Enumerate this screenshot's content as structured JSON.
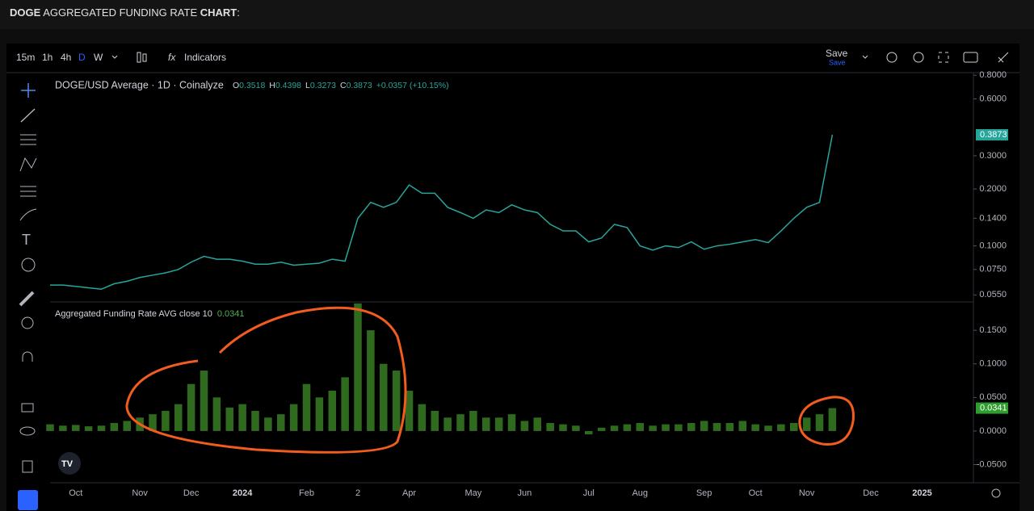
{
  "header": {
    "title": [
      "DOGE",
      " AGGREGATED FUNDING RATE ",
      "CHART",
      ":"
    ]
  },
  "toolbar": {
    "intervals": [
      "15m",
      "1h",
      "4h",
      "D",
      "W"
    ],
    "indicators": "Indicators",
    "save": "Save",
    "save_sub": "Save"
  },
  "chart_data": [
    {
      "type": "line",
      "title": "DOGE/USD Average · 1D · Coinalyze",
      "ohlc": [
        "O",
        "0.3518",
        "H",
        "0.4398",
        "L",
        "0.3273",
        "C",
        "0.3873",
        "+0.0357 (+10.15%)"
      ],
      "log_scale": true,
      "color": "#26a69a",
      "categories": [
        null,
        null,
        "Oct",
        null,
        null,
        null,
        null,
        "Nov",
        null,
        null,
        null,
        "Dec",
        null,
        null,
        null,
        "2024",
        null,
        null,
        null,
        null,
        "Feb",
        null,
        null,
        null,
        "2",
        null,
        null,
        null,
        "Apr",
        null,
        null,
        null,
        null,
        "May",
        null,
        null,
        null,
        "Jun",
        null,
        null,
        null,
        null,
        "Jul",
        null,
        null,
        null,
        "Aug",
        null,
        null,
        null,
        null,
        "Sep",
        null,
        null,
        null,
        "Oct",
        null,
        null,
        null,
        "Nov",
        null,
        null,
        null,
        null,
        "Dec",
        null,
        null,
        null,
        "2025",
        null,
        null,
        null
      ],
      "values": [
        0.062,
        0.062,
        0.061,
        0.06,
        0.059,
        0.063,
        0.065,
        0.068,
        0.07,
        0.072,
        0.075,
        0.082,
        0.088,
        0.085,
        0.085,
        0.083,
        0.08,
        0.08,
        0.082,
        0.079,
        0.08,
        0.081,
        0.085,
        0.083,
        0.14,
        0.17,
        0.16,
        0.17,
        0.21,
        0.19,
        0.19,
        0.16,
        0.15,
        0.14,
        0.155,
        0.15,
        0.165,
        0.155,
        0.15,
        0.13,
        0.12,
        0.12,
        0.105,
        0.11,
        0.13,
        0.125,
        0.1,
        0.095,
        0.1,
        0.098,
        0.105,
        0.096,
        0.1,
        0.102,
        0.105,
        0.108,
        0.104,
        0.12,
        0.14,
        0.16,
        0.17,
        0.3873,
        null,
        null,
        null,
        null,
        null,
        null,
        null,
        null,
        null,
        null
      ],
      "ylim": [
        0.051,
        0.81
      ],
      "yticks": [
        {
          "value": 0.8,
          "label": "0.8000"
        },
        {
          "value": 0.6,
          "label": "0.6000"
        },
        {
          "value": 0.3,
          "label": "0.3000"
        },
        {
          "value": 0.2,
          "label": "0.2000"
        },
        {
          "value": 0.14,
          "label": "0.1400"
        },
        {
          "value": 0.1,
          "label": "0.1000"
        },
        {
          "value": 0.075,
          "label": "0.0750"
        },
        {
          "value": 0.055,
          "label": "0.0550"
        }
      ]
    },
    {
      "type": "bar",
      "title": "Aggregated Funding Rate AVG close 10",
      "color": "#2f6a1f",
      "categories": [
        null,
        null,
        "Oct",
        null,
        null,
        null,
        null,
        "Nov",
        null,
        null,
        null,
        "Dec",
        null,
        null,
        null,
        "2024",
        null,
        null,
        null,
        null,
        "Feb",
        null,
        null,
        null,
        "2",
        null,
        null,
        null,
        "Apr",
        null,
        null,
        null,
        null,
        "May",
        null,
        null,
        null,
        "Jun",
        null,
        null,
        null,
        null,
        "Jul",
        null,
        null,
        null,
        "Aug",
        null,
        null,
        null,
        null,
        "Sep",
        null,
        null,
        null,
        "Oct",
        null,
        null,
        null,
        "Nov",
        null,
        null,
        null,
        null,
        "Dec",
        null,
        null,
        null,
        "2025",
        null,
        null,
        null
      ],
      "values": [
        0.01,
        0.008,
        0.009,
        0.007,
        0.008,
        0.012,
        0.015,
        0.02,
        0.025,
        0.03,
        0.04,
        0.07,
        0.09,
        0.05,
        0.035,
        0.04,
        0.03,
        0.02,
        0.025,
        0.04,
        0.07,
        0.05,
        0.06,
        0.08,
        0.19,
        0.15,
        0.1,
        0.09,
        0.06,
        0.04,
        0.03,
        0.02,
        0.025,
        0.03,
        0.02,
        0.02,
        0.025,
        0.015,
        0.02,
        0.012,
        0.01,
        0.008,
        -0.005,
        0.005,
        0.008,
        0.01,
        0.012,
        0.008,
        0.01,
        0.01,
        0.012,
        0.015,
        0.012,
        0.012,
        0.015,
        0.01,
        0.008,
        0.01,
        0.012,
        0.02,
        0.025,
        0.0341,
        null,
        null,
        null,
        null,
        null,
        null,
        null,
        null,
        null,
        null
      ],
      "ylim": [
        -0.077,
        0.191
      ],
      "yticks": [
        {
          "value": 0.15,
          "label": "0.1500"
        },
        {
          "value": 0.1,
          "label": "0.1000"
        },
        {
          "value": 0.05,
          "label": "0.0500"
        },
        {
          "value": 0,
          "label": "0.0000"
        },
        {
          "value": -0.05,
          "label": "-0.0500"
        }
      ]
    }
  ]
}
